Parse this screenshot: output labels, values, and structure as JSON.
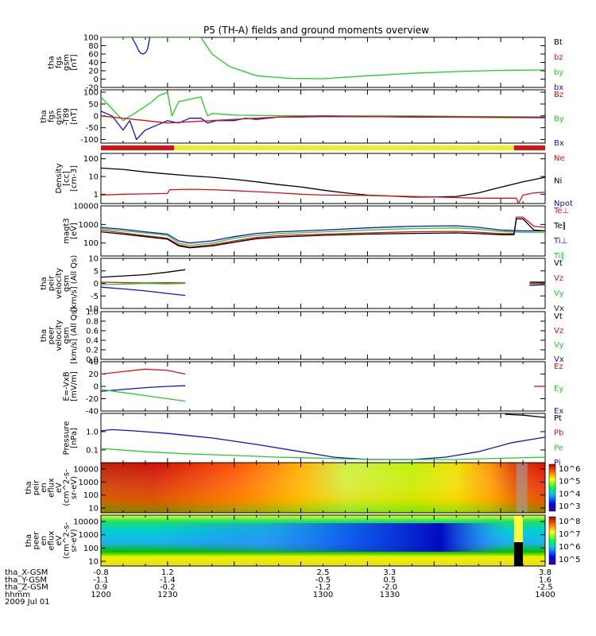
{
  "title": "P5 (TH-A) fields and ground moments overview",
  "colors": {
    "black": "#000000",
    "red": "#e01010",
    "green": "#20d020",
    "blue": "#1010e0",
    "yellow": "#f0f020"
  },
  "chart_data": [
    {
      "type": "line",
      "panel": "fgs",
      "ylabel_lines": [
        "tha",
        "fgs",
        "gsm",
        "[nT]"
      ],
      "yticks": [
        "100",
        "80",
        "60",
        "40",
        "20",
        "0",
        "-20"
      ],
      "ylim": [
        -20,
        100
      ],
      "legend": [
        {
          "text": "Bt",
          "color": "black"
        },
        {
          "text": "bz",
          "color": "red"
        },
        {
          "text": "by",
          "color": "green"
        },
        {
          "text": "bx",
          "color": "blue"
        }
      ],
      "series": [
        {
          "color": "green",
          "x": [
            1200,
            1208,
            1215,
            1222,
            1230,
            1240,
            1245,
            1250,
            1258,
            1270,
            1285,
            1300,
            1320,
            1340,
            1360,
            1380,
            1400
          ],
          "y": [
            100,
            100,
            100,
            100,
            100,
            100,
            100,
            60,
            30,
            8,
            2,
            1,
            8,
            14,
            18,
            21,
            22
          ]
        },
        {
          "color": "blue",
          "x": [
            1214,
            1216,
            1217,
            1218,
            1219,
            1220,
            1221,
            1222
          ],
          "y": [
            100,
            80,
            68,
            62,
            60,
            63,
            72,
            100
          ]
        }
      ]
    },
    {
      "type": "line",
      "panel": "fgs_t89",
      "ylabel_lines": [
        "tha",
        "fgs",
        "gsm",
        "-T89",
        "[nT]"
      ],
      "yticks": [
        "100",
        "50",
        "0",
        "-50",
        "-100"
      ],
      "ylim": [
        -115,
        110
      ],
      "legend": [
        {
          "text": "Bz",
          "color": "red"
        },
        {
          "text": "By",
          "color": "green"
        },
        {
          "text": "Bx",
          "color": "blue"
        }
      ],
      "series": [
        {
          "color": "green",
          "x": [
            1200,
            1203,
            1206,
            1210,
            1215,
            1220,
            1223,
            1226,
            1230,
            1232,
            1235,
            1245,
            1248,
            1250,
            1258,
            1262,
            1270,
            1280,
            1300,
            1320,
            1340,
            1360,
            1380,
            1400
          ],
          "y": [
            80,
            50,
            20,
            -20,
            10,
            40,
            60,
            85,
            100,
            0,
            60,
            80,
            0,
            10,
            5,
            3,
            2,
            1,
            0,
            0,
            0,
            -2,
            -3,
            -5
          ]
        },
        {
          "color": "blue",
          "x": [
            1200,
            1205,
            1210,
            1213,
            1216,
            1220,
            1225,
            1230,
            1235,
            1240,
            1245,
            1248,
            1252,
            1260,
            1265,
            1270,
            1280,
            1290,
            1300,
            1320,
            1340,
            1360,
            1380,
            1400
          ],
          "y": [
            20,
            0,
            -60,
            -20,
            -100,
            -60,
            -40,
            -20,
            -30,
            -10,
            -10,
            -30,
            -20,
            -20,
            -10,
            -15,
            -5,
            -5,
            -3,
            -4,
            -4,
            -5,
            -6,
            -6
          ]
        },
        {
          "color": "red",
          "x": [
            1200,
            1210,
            1220,
            1230,
            1240,
            1250,
            1260,
            1270,
            1280,
            1300,
            1320,
            1340,
            1360,
            1380,
            1400
          ],
          "y": [
            0,
            -10,
            -20,
            -30,
            -25,
            -20,
            -15,
            -10,
            -5,
            0,
            -3,
            -6,
            -6,
            -7,
            -8
          ]
        }
      ]
    },
    {
      "type": "bar",
      "panel": "mode_bar",
      "segments": [
        {
          "x0": 1200,
          "x1": 1233,
          "color": "red"
        },
        {
          "x0": 1233,
          "x1": 1386,
          "color": "yellow"
        },
        {
          "x0": 1386,
          "x1": 1400,
          "color": "red"
        }
      ]
    },
    {
      "type": "line",
      "panel": "density",
      "scale": "log",
      "ylabel_lines": [
        "Density",
        "[cc]",
        "[cm-3]"
      ],
      "yticks": [
        "100",
        "10",
        "1"
      ],
      "ylim": [
        0.3,
        200
      ],
      "legend": [
        {
          "text": "Ne",
          "color": "red"
        },
        {
          "text": "Ni",
          "color": "black"
        },
        {
          "text": "Npot",
          "color": "blue"
        }
      ],
      "series": [
        {
          "color": "black",
          "x": [
            1200,
            1210,
            1220,
            1230,
            1240,
            1250,
            1260,
            1270,
            1280,
            1290,
            1300,
            1310,
            1320,
            1330,
            1340,
            1350,
            1360,
            1370,
            1380,
            1390,
            1400
          ],
          "y": [
            30,
            25,
            18,
            14,
            11,
            9,
            7,
            5,
            3.5,
            2.6,
            1.7,
            1.2,
            0.9,
            0.8,
            0.7,
            0.7,
            0.75,
            1.2,
            2.5,
            5,
            9
          ]
        },
        {
          "color": "red",
          "x": [
            1200,
            1210,
            1220,
            1230,
            1231,
            1240,
            1250,
            1260,
            1270,
            1280,
            1290,
            1300,
            1320,
            1340,
            1360,
            1370,
            1380,
            1387,
            1388,
            1390,
            1395,
            1400
          ],
          "y": [
            0.9,
            1.0,
            1.05,
            1.1,
            1.8,
            1.9,
            1.8,
            1.6,
            1.4,
            1.2,
            1.0,
            0.9,
            0.85,
            0.75,
            0.65,
            0.6,
            0.6,
            0.6,
            0.3,
            0.9,
            1.2,
            1.3
          ]
        }
      ]
    },
    {
      "type": "line",
      "panel": "temp",
      "scale": "log",
      "ylabel_lines": [
        "magt3",
        "[eV]"
      ],
      "yticks": [
        "10000",
        "1000",
        "100"
      ],
      "ylim": [
        20,
        10000
      ],
      "legend": [
        {
          "text": "Te⊥",
          "color": "red"
        },
        {
          "text": "Te∥",
          "color": "black"
        },
        {
          "text": "Ti⊥",
          "color": "blue"
        },
        {
          "text": "Ti∥",
          "color": "green"
        }
      ],
      "series": [
        {
          "color": "blue",
          "x": [
            1200,
            1210,
            1220,
            1230,
            1235,
            1240,
            1250,
            1260,
            1270,
            1280,
            1300,
            1320,
            1340,
            1360,
            1370,
            1380,
            1390,
            1400
          ],
          "y": [
            700,
            550,
            400,
            300,
            130,
            100,
            130,
            220,
            330,
            400,
            500,
            650,
            800,
            850,
            700,
            500,
            450,
            450
          ]
        },
        {
          "color": "green",
          "x": [
            1200,
            1210,
            1220,
            1230,
            1235,
            1240,
            1250,
            1260,
            1270,
            1280,
            1300,
            1320,
            1340,
            1360,
            1370,
            1380,
            1390,
            1400
          ],
          "y": [
            600,
            450,
            350,
            260,
            100,
            75,
            100,
            180,
            260,
            320,
            400,
            500,
            600,
            650,
            550,
            420,
            380,
            380
          ]
        },
        {
          "color": "red",
          "x": [
            1200,
            1210,
            1220,
            1230,
            1235,
            1240,
            1250,
            1260,
            1270,
            1280,
            1300,
            1320,
            1340,
            1360,
            1370,
            1380,
            1386,
            1387,
            1390,
            1395,
            1400
          ],
          "y": [
            500,
            350,
            250,
            180,
            80,
            60,
            80,
            130,
            200,
            250,
            300,
            350,
            400,
            420,
            380,
            320,
            320,
            2500,
            2500,
            800,
            700
          ]
        },
        {
          "color": "black",
          "x": [
            1200,
            1210,
            1220,
            1230,
            1235,
            1240,
            1250,
            1260,
            1270,
            1280,
            1300,
            1320,
            1340,
            1360,
            1370,
            1380,
            1386,
            1387,
            1390,
            1395,
            1400
          ],
          "y": [
            400,
            300,
            220,
            160,
            70,
            55,
            70,
            110,
            170,
            210,
            260,
            300,
            330,
            350,
            320,
            280,
            280,
            2000,
            2000,
            500,
            450
          ]
        }
      ]
    },
    {
      "type": "line",
      "panel": "peir_velocity",
      "ylabel_lines": [
        "tha",
        "peir",
        "velocity",
        "gsm",
        "[km/s] (All Qs)"
      ],
      "yticks": [
        "10",
        "5",
        "0",
        "-5",
        "-10"
      ],
      "ylim": [
        -10,
        10
      ],
      "legend": [
        {
          "text": "Vt",
          "color": "black"
        },
        {
          "text": "Vz",
          "color": "red"
        },
        {
          "text": "Vy",
          "color": "green"
        },
        {
          "text": "Vx",
          "color": "blue"
        }
      ],
      "series": [
        {
          "color": "black",
          "x": [
            1200,
            1210,
            1220,
            1230,
            1238
          ],
          "y": [
            2.5,
            3,
            3.5,
            4.5,
            5.5
          ]
        },
        {
          "color": "red",
          "x": [
            1200,
            1210,
            1220,
            1230,
            1238
          ],
          "y": [
            0.5,
            0.3,
            0.2,
            0.3,
            0.2
          ]
        },
        {
          "color": "green",
          "x": [
            1200,
            1210,
            1220,
            1230,
            1238
          ],
          "y": [
            -0.5,
            -0.3,
            0,
            -0.2,
            0
          ]
        },
        {
          "color": "blue",
          "x": [
            1200,
            1210,
            1220,
            1230,
            1238
          ],
          "y": [
            -1.5,
            -2.2,
            -3,
            -4,
            -4.8
          ]
        },
        {
          "color": "black",
          "x": [
            1393,
            1400
          ],
          "y": [
            0.5,
            0.5
          ]
        },
        {
          "color": "red",
          "x": [
            1393,
            1400
          ],
          "y": [
            0,
            0.2
          ]
        },
        {
          "color": "green",
          "x": [
            1393,
            1400
          ],
          "y": [
            -0.5,
            -0.3
          ]
        },
        {
          "color": "blue",
          "x": [
            1393,
            1400
          ],
          "y": [
            -0.8,
            -0.5
          ]
        }
      ]
    },
    {
      "type": "line",
      "panel": "peer_velocity",
      "ylabel_lines": [
        "tha",
        "peer",
        "velocity",
        "gsm",
        "[km/s] (All Qs)"
      ],
      "yticks": [
        "1.0",
        "0.8",
        "0.6",
        "0.4",
        "0.2",
        "0.0"
      ],
      "ylim": [
        0,
        1
      ],
      "legend": [
        {
          "text": "Vt",
          "color": "black"
        },
        {
          "text": "Vz",
          "color": "red"
        },
        {
          "text": "Vy",
          "color": "green"
        },
        {
          "text": "Vx",
          "color": "blue"
        }
      ],
      "series": []
    },
    {
      "type": "line",
      "panel": "efield",
      "ylabel_lines": [
        "E=-VxB",
        "[mV/m]"
      ],
      "yticks": [
        "40",
        "20",
        "0",
        "-20",
        "-40"
      ],
      "ylim": [
        -40,
        40
      ],
      "legend": [
        {
          "text": "Ez",
          "color": "red"
        },
        {
          "text": "Ey",
          "color": "green"
        },
        {
          "text": "Ex",
          "color": "blue"
        }
      ],
      "series": [
        {
          "color": "red",
          "x": [
            1200,
            1210,
            1220,
            1230,
            1238
          ],
          "y": [
            20,
            24,
            28,
            26,
            20
          ]
        },
        {
          "color": "blue",
          "x": [
            1200,
            1210,
            1220,
            1230,
            1238
          ],
          "y": [
            -8,
            -5,
            -2,
            0,
            1
          ]
        },
        {
          "color": "green",
          "x": [
            1200,
            1210,
            1220,
            1230,
            1238
          ],
          "y": [
            -5,
            -10,
            -15,
            -20,
            -24
          ]
        },
        {
          "color": "red",
          "x": [
            1395,
            1400
          ],
          "y": [
            0,
            0
          ]
        }
      ]
    },
    {
      "type": "line",
      "panel": "pressure",
      "scale": "log",
      "ylabel_lines": [
        "Pressure",
        "[nPa]"
      ],
      "yticks": [
        "1.0",
        "0.1"
      ],
      "ylim": [
        0.02,
        10
      ],
      "legend": [
        {
          "text": "Pt",
          "color": "black"
        },
        {
          "text": "Pb",
          "color": "red"
        },
        {
          "text": "Pe",
          "color": "green"
        },
        {
          "text": "Pi",
          "color": "blue"
        }
      ],
      "series": [
        {
          "color": "blue",
          "x": [
            1200,
            1205,
            1215,
            1230,
            1250,
            1270,
            1290,
            1305,
            1320,
            1340,
            1355,
            1370,
            1385,
            1400
          ],
          "y": [
            1.1,
            1.3,
            1.1,
            0.8,
            0.45,
            0.2,
            0.08,
            0.04,
            0.03,
            0.03,
            0.04,
            0.08,
            0.25,
            0.5
          ]
        },
        {
          "color": "green",
          "x": [
            1200,
            1220,
            1240,
            1260,
            1280,
            1300,
            1320,
            1340,
            1360,
            1380,
            1400
          ],
          "y": [
            0.12,
            0.08,
            0.06,
            0.05,
            0.04,
            0.035,
            0.03,
            0.03,
            0.03,
            0.035,
            0.04
          ]
        },
        {
          "color": "black",
          "x": [
            1382,
            1390,
            1400
          ],
          "y": [
            9,
            8,
            6
          ]
        }
      ]
    },
    {
      "type": "heatmap",
      "panel": "peir_eflux",
      "ylabel_lines": [
        "tha",
        "peir",
        "en",
        "eflux",
        "eV",
        "(cm^2-s-",
        "sr-eV)"
      ],
      "yticks": [
        "10000",
        "1000",
        "100",
        "10"
      ],
      "colorbar_ticks": [
        "10^6",
        "10^5",
        "10^4",
        "10^3"
      ]
    },
    {
      "type": "heatmap",
      "panel": "peer_eflux",
      "ylabel_lines": [
        "tha",
        "peer",
        "en",
        "eflux",
        "eV",
        "(cm^2-s-",
        "sr-eV)"
      ],
      "yticks": [
        "10000",
        "1000",
        "100",
        "10"
      ],
      "colorbar_ticks": [
        "10^8",
        "10^7",
        "10^6",
        "10^5"
      ]
    }
  ],
  "xaxis": {
    "row_labels": [
      "tha_X-GSM",
      "tha_Y-GSM",
      "tha_Z-GSM",
      "hhmm",
      "2009 Jul 01"
    ],
    "ticks": [
      {
        "x": 1200,
        "vals": [
          "-0.8",
          "-1.1",
          "0.9",
          "1200"
        ]
      },
      {
        "x": 1230,
        "vals": [
          "1.2",
          "-1.4",
          "-0.2",
          "1230"
        ]
      },
      {
        "x": 1300,
        "vals": [
          "2.5",
          "-0.5",
          "-1.2",
          "1300"
        ]
      },
      {
        "x": 1330,
        "vals": [
          "3.3",
          "0.5",
          "-2.0",
          "1330"
        ]
      },
      {
        "x": 1400,
        "vals": [
          "3.8",
          "1.6",
          "-2.5",
          "1400"
        ]
      }
    ]
  }
}
